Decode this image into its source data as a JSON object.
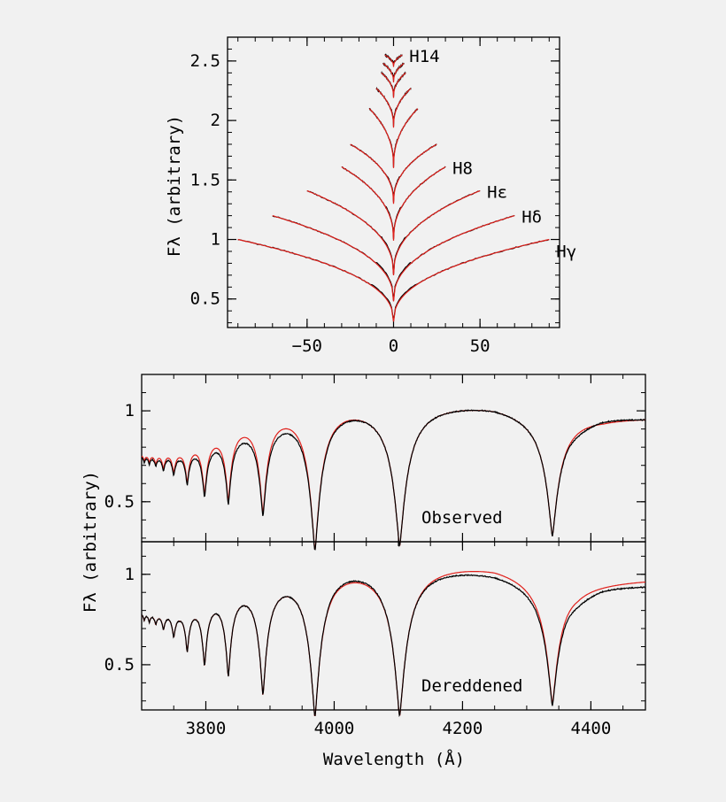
{
  "chart_data": [
    {
      "type": "line",
      "panel": "top",
      "xlabel": "",
      "ylabel": "Fλ (arbitrary)",
      "xlim": [
        -96,
        96
      ],
      "ylim": [
        0.26,
        2.7
      ],
      "x_ticks": [
        -50,
        0,
        50
      ],
      "y_ticks": [
        0.5,
        1,
        1.5,
        2,
        2.5
      ],
      "y_tick_labels": [
        "0.5",
        "1",
        "1.5",
        "2",
        "2.5"
      ],
      "grid": false,
      "line_colors": {
        "observed": "#000000",
        "model": "#e0201b"
      },
      "series": [
        {
          "name": "Hγ",
          "label_text": "Hγ",
          "halfwidth": 90,
          "continuum": 1.0,
          "core": 0.31
        },
        {
          "name": "Hδ",
          "label_text": "Hδ",
          "halfwidth": 70,
          "continuum": 1.2,
          "core": 0.48
        },
        {
          "name": "Hε",
          "label_text": "Hε",
          "halfwidth": 50,
          "continuum": 1.41,
          "core": 0.7
        },
        {
          "name": "H8",
          "label_text": "H8",
          "halfwidth": 30,
          "continuum": 1.61,
          "core": 0.99
        },
        {
          "name": "H9",
          "label_text": "",
          "halfwidth": 25,
          "continuum": 1.8,
          "core": 1.3
        },
        {
          "name": "H10",
          "label_text": "",
          "halfwidth": 14,
          "continuum": 2.1,
          "core": 1.6
        },
        {
          "name": "H11",
          "label_text": "",
          "halfwidth": 10,
          "continuum": 2.27,
          "core": 1.94
        },
        {
          "name": "H12",
          "label_text": "",
          "halfwidth": 7,
          "continuum": 2.4,
          "core": 2.19
        },
        {
          "name": "H13",
          "label_text": "",
          "halfwidth": 6,
          "continuum": 2.48,
          "core": 2.32
        },
        {
          "name": "H14",
          "label_text": "H14",
          "halfwidth": 5,
          "continuum": 2.55,
          "core": 2.45
        }
      ]
    },
    {
      "type": "line",
      "panel": "middle",
      "annotation": "Observed",
      "xlim": [
        3700,
        4485
      ],
      "ylim": [
        0.28,
        1.2
      ],
      "x_ticks": [
        3800,
        4000,
        4200,
        4400
      ],
      "y_ticks": [
        0.5,
        1
      ],
      "y_tick_labels": [
        "0.5",
        "1"
      ],
      "grid": false,
      "line_colors": {
        "observed": "#000000",
        "model": "#e0201b"
      },
      "series": [
        {
          "name": "observed",
          "continuum": [
            [
              3700,
              0.8
            ],
            [
              3760,
              0.86
            ],
            [
              3800,
              0.93
            ],
            [
              3850,
              1.01
            ],
            [
              3900,
              1.07
            ],
            [
              3950,
              1.11
            ],
            [
              4000,
              1.13
            ],
            [
              4060,
              1.12
            ],
            [
              4150,
              1.11
            ],
            [
              4250,
              1.09
            ],
            [
              4330,
              1.04
            ],
            [
              4380,
              1.0
            ],
            [
              4420,
              1.01
            ],
            [
              4485,
              0.99
            ]
          ]
        },
        {
          "name": "model",
          "continuum": [
            [
              3700,
              0.81
            ],
            [
              3760,
              0.88
            ],
            [
              3800,
              0.96
            ],
            [
              3850,
              1.05
            ],
            [
              3900,
              1.11
            ],
            [
              3950,
              1.14
            ],
            [
              4000,
              1.14
            ],
            [
              4060,
              1.12
            ],
            [
              4150,
              1.11
            ],
            [
              4250,
              1.09
            ],
            [
              4330,
              1.04
            ],
            [
              4380,
              1.02
            ],
            [
              4420,
              1.0
            ],
            [
              4485,
              0.99
            ]
          ]
        }
      ],
      "lines": [
        {
          "center": 3704,
          "depth": 0.05,
          "width": 1.5
        },
        {
          "center": 3712,
          "depth": 0.06,
          "width": 2
        },
        {
          "center": 3722,
          "depth": 0.08,
          "width": 2.5
        },
        {
          "center": 3734,
          "depth": 0.12,
          "width": 3
        },
        {
          "center": 3750,
          "depth": 0.16,
          "width": 3.5
        },
        {
          "center": 3771,
          "depth": 0.25,
          "width": 4
        },
        {
          "center": 3798,
          "depth": 0.37,
          "width": 5
        },
        {
          "center": 3835,
          "depth": 0.45,
          "width": 6
        },
        {
          "center": 3889,
          "depth": 0.56,
          "width": 8
        },
        {
          "center": 3970,
          "depth": 0.78,
          "width": 11
        },
        {
          "center": 4102,
          "depth": 0.76,
          "width": 13
        },
        {
          "center": 4340,
          "depth": 0.69,
          "width": 13
        }
      ]
    },
    {
      "type": "line",
      "panel": "bottom",
      "annotation": "Dereddened",
      "xlabel": "Wavelength (Å)",
      "ylabel": "Fλ (arbitrary)",
      "xlim": [
        3700,
        4485
      ],
      "ylim": [
        0.25,
        1.18
      ],
      "x_ticks": [
        3800,
        4000,
        4200,
        4400
      ],
      "x_tick_labels": [
        "3800",
        "4000",
        "4200",
        "4400"
      ],
      "y_ticks": [
        0.5,
        1
      ],
      "y_tick_labels": [
        "0.5",
        "1"
      ],
      "grid": false,
      "line_colors": {
        "observed": "#000000",
        "model": "#e0201b"
      },
      "series": [
        {
          "name": "observed",
          "continuum": [
            [
              3700,
              0.84
            ],
            [
              3760,
              0.9
            ],
            [
              3800,
              0.98
            ],
            [
              3850,
              1.05
            ],
            [
              3900,
              1.1
            ],
            [
              3950,
              1.13
            ],
            [
              4000,
              1.16
            ],
            [
              4060,
              1.15
            ],
            [
              4150,
              1.12
            ],
            [
              4250,
              1.08
            ],
            [
              4330,
              1.02
            ],
            [
              4380,
              0.96
            ],
            [
              4420,
              0.98
            ],
            [
              4485,
              0.97
            ]
          ]
        },
        {
          "name": "model",
          "continuum": [
            [
              3700,
              0.84
            ],
            [
              3760,
              0.9
            ],
            [
              3800,
              0.98
            ],
            [
              3850,
              1.05
            ],
            [
              3900,
              1.1
            ],
            [
              3950,
              1.13
            ],
            [
              4000,
              1.15
            ],
            [
              4060,
              1.14
            ],
            [
              4150,
              1.13
            ],
            [
              4250,
              1.11
            ],
            [
              4330,
              1.05
            ],
            [
              4380,
              1.0
            ],
            [
              4420,
              1.0
            ],
            [
              4485,
              1.0
            ]
          ]
        }
      ],
      "lines": [
        {
          "center": 3704,
          "depth": 0.05,
          "width": 1.5
        },
        {
          "center": 3712,
          "depth": 0.06,
          "width": 2
        },
        {
          "center": 3722,
          "depth": 0.08,
          "width": 2.5
        },
        {
          "center": 3734,
          "depth": 0.12,
          "width": 3
        },
        {
          "center": 3750,
          "depth": 0.18,
          "width": 3.5
        },
        {
          "center": 3771,
          "depth": 0.3,
          "width": 4
        },
        {
          "center": 3798,
          "depth": 0.43,
          "width": 5
        },
        {
          "center": 3835,
          "depth": 0.52,
          "width": 6
        },
        {
          "center": 3889,
          "depth": 0.66,
          "width": 8
        },
        {
          "center": 3970,
          "depth": 0.8,
          "width": 11
        },
        {
          "center": 4102,
          "depth": 0.8,
          "width": 13
        },
        {
          "center": 4340,
          "depth": 0.72,
          "width": 13
        }
      ]
    }
  ]
}
